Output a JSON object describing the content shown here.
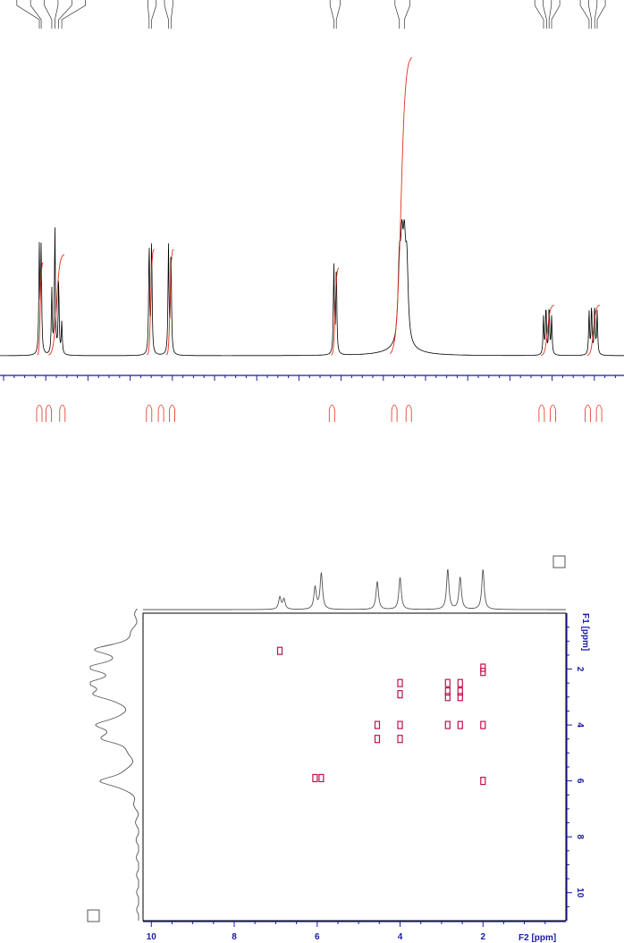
{
  "chart_data": [
    {
      "type": "line",
      "title": "",
      "xlabel": "",
      "ylabel": "",
      "ticks_drawn_unlabeled": true,
      "colors": {
        "spectrum": "#000000",
        "integral": "#e0301e",
        "axis": "#1a1aa8"
      },
      "peak_groups": [
        {
          "name": "A",
          "center": 0.06,
          "lines": 6,
          "relative_height": 0.6
        },
        {
          "name": "B",
          "center": 0.255,
          "lines": 2,
          "relative_height": 0.72
        },
        {
          "name": "C",
          "center": 0.295,
          "lines": 2,
          "relative_height": 0.72
        },
        {
          "name": "D",
          "center": 0.538,
          "lines": 2,
          "relative_height": 0.6
        },
        {
          "name": "E",
          "center": 0.645,
          "lines": 4,
          "relative_height": 0.6
        },
        {
          "name": "F",
          "center": 0.88,
          "lines": 4,
          "relative_height": 0.18
        },
        {
          "name": "G",
          "center": 0.95,
          "lines": 4,
          "relative_height": 0.18
        }
      ]
    },
    {
      "type": "scatter",
      "title": "",
      "xlabel": "F2 [ppm]",
      "ylabel": "F1 [ppm]",
      "x_ticks": [
        "10",
        "8",
        "6",
        "4",
        "2"
      ],
      "y_ticks": [
        "2",
        "4",
        "6",
        "8",
        "10"
      ],
      "xlim": [
        10.2,
        0.0
      ],
      "ylim": [
        0.0,
        11.0
      ],
      "colors": {
        "contour": "#c0124a",
        "axis": "#1a1aa8",
        "projection": "#555555"
      },
      "projection_peaks_f2": [
        6.9,
        6.8,
        6.05,
        5.9,
        4.55,
        4.0,
        2.85,
        2.55,
        2.0
      ],
      "cross_peaks": [
        {
          "x": 6.9,
          "y": 1.35
        },
        {
          "x": 2.0,
          "y": 1.95
        },
        {
          "x": 2.0,
          "y": 2.1
        },
        {
          "x": 4.0,
          "y": 2.5
        },
        {
          "x": 4.0,
          "y": 2.9
        },
        {
          "x": 2.85,
          "y": 2.5
        },
        {
          "x": 2.85,
          "y": 2.8
        },
        {
          "x": 2.85,
          "y": 3.0
        },
        {
          "x": 2.55,
          "y": 2.5
        },
        {
          "x": 2.55,
          "y": 2.8
        },
        {
          "x": 2.55,
          "y": 3.0
        },
        {
          "x": 4.55,
          "y": 4.0
        },
        {
          "x": 4.55,
          "y": 4.5
        },
        {
          "x": 4.0,
          "y": 4.0
        },
        {
          "x": 4.0,
          "y": 4.5
        },
        {
          "x": 2.85,
          "y": 4.0
        },
        {
          "x": 2.55,
          "y": 4.0
        },
        {
          "x": 2.0,
          "y": 4.0
        },
        {
          "x": 6.05,
          "y": 5.9
        },
        {
          "x": 5.9,
          "y": 5.9
        },
        {
          "x": 2.0,
          "y": 6.0
        }
      ]
    }
  ]
}
